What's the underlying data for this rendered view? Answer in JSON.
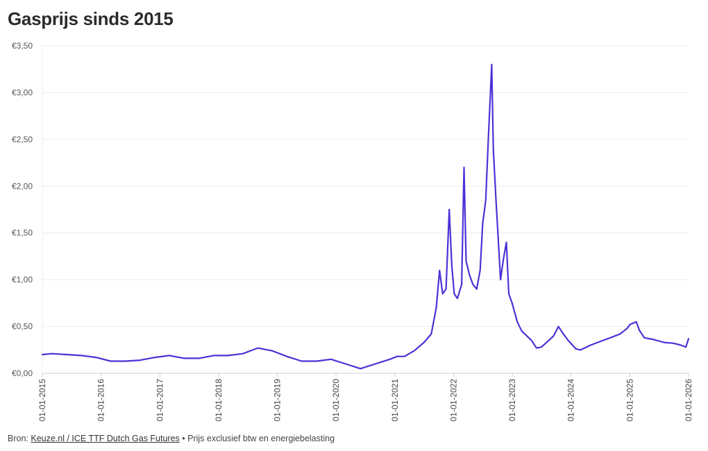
{
  "page": {
    "title": "Gasprijs sinds 2015"
  },
  "footer": {
    "prefix": "Bron: ",
    "source_link": "Keuze.nl / ICE TTF Dutch Gas Futures",
    "note": " • Prijs exclusief btw en energiebelasting"
  },
  "colors": {
    "line": "#4a32d6",
    "grid": "#ececec",
    "axis": "#cfcfcf"
  },
  "chart_data": {
    "type": "line",
    "title": "Gasprijs sinds 2015",
    "xlabel": "",
    "ylabel": "",
    "ylim": [
      0,
      3.5
    ],
    "yticks": [
      0,
      0.5,
      1.0,
      1.5,
      2.0,
      2.5,
      3.0,
      3.5
    ],
    "ytick_labels": [
      "€0,00",
      "€0,50",
      "€1,00",
      "€1,50",
      "€2,00",
      "€2,50",
      "€3,00",
      "€3,50"
    ],
    "xlim": [
      "2015-01-01",
      "2026-01-01"
    ],
    "xtick_labels": [
      "01-01-2015",
      "01-01-2016",
      "01-01-2017",
      "01-01-2018",
      "01-01-2019",
      "01-01-2020",
      "01-01-2021",
      "01-01-2022",
      "01-01-2023",
      "01-01-2024",
      "01-01-2025",
      "01-01-2026"
    ],
    "grid": true,
    "legend": "none",
    "series": [
      {
        "x": [
          "2015-01-01",
          "2015-03-01",
          "2015-06-01",
          "2015-09-01",
          "2015-12-01",
          "2016-03-01",
          "2016-06-01",
          "2016-09-01",
          "2016-12-01",
          "2017-03-01",
          "2017-06-01",
          "2017-09-01",
          "2017-12-01",
          "2018-03-01",
          "2018-06-01",
          "2018-09-01",
          "2018-12-01",
          "2019-03-01",
          "2019-06-01",
          "2019-09-01",
          "2019-12-01",
          "2020-03-01",
          "2020-06-01",
          "2020-09-01",
          "2020-12-01",
          "2021-01-15",
          "2021-03-01",
          "2021-05-01",
          "2021-07-01",
          "2021-08-15",
          "2021-09-15",
          "2021-10-06",
          "2021-10-25",
          "2021-11-15",
          "2021-12-05",
          "2021-12-21",
          "2022-01-05",
          "2022-01-25",
          "2022-02-20",
          "2022-03-07",
          "2022-03-20",
          "2022-04-10",
          "2022-05-01",
          "2022-05-25",
          "2022-06-15",
          "2022-07-01",
          "2022-07-20",
          "2022-08-05",
          "2022-08-26",
          "2022-09-05",
          "2022-09-20",
          "2022-10-05",
          "2022-10-20",
          "2022-11-05",
          "2022-11-25",
          "2022-12-10",
          "2022-12-31",
          "2023-02-01",
          "2023-03-01",
          "2023-04-01",
          "2023-05-01",
          "2023-06-01",
          "2023-07-01",
          "2023-08-15",
          "2023-09-15",
          "2023-10-15",
          "2023-11-15",
          "2023-12-15",
          "2024-02-01",
          "2024-03-01",
          "2024-05-01",
          "2024-07-01",
          "2024-09-01",
          "2024-11-01",
          "2024-12-15",
          "2025-01-01",
          "2025-02-10",
          "2025-03-01",
          "2025-04-01",
          "2025-06-01",
          "2025-08-01",
          "2025-10-01",
          "2025-11-15",
          "2025-12-15",
          "2026-01-01"
        ],
        "y": [
          0.2,
          0.21,
          0.2,
          0.19,
          0.17,
          0.13,
          0.13,
          0.14,
          0.17,
          0.19,
          0.16,
          0.16,
          0.19,
          0.19,
          0.21,
          0.27,
          0.24,
          0.18,
          0.13,
          0.13,
          0.15,
          0.1,
          0.05,
          0.1,
          0.15,
          0.18,
          0.18,
          0.24,
          0.33,
          0.42,
          0.7,
          1.1,
          0.85,
          0.9,
          1.75,
          1.15,
          0.85,
          0.8,
          0.95,
          2.2,
          1.2,
          1.05,
          0.95,
          0.9,
          1.1,
          1.6,
          1.85,
          2.5,
          3.3,
          2.4,
          1.9,
          1.45,
          1.0,
          1.2,
          1.4,
          0.85,
          0.75,
          0.55,
          0.45,
          0.4,
          0.35,
          0.27,
          0.28,
          0.35,
          0.4,
          0.5,
          0.42,
          0.35,
          0.26,
          0.25,
          0.3,
          0.34,
          0.38,
          0.42,
          0.48,
          0.52,
          0.55,
          0.46,
          0.38,
          0.36,
          0.33,
          0.32,
          0.3,
          0.28,
          0.37
        ]
      }
    ]
  }
}
